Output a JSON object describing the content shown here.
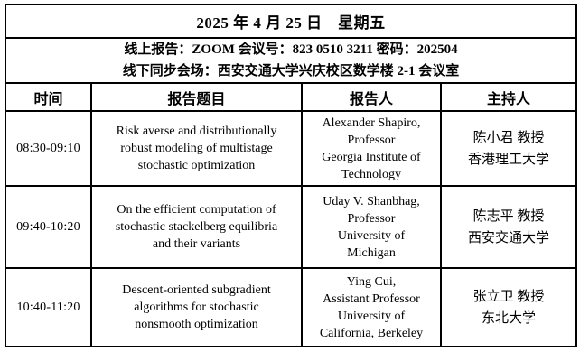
{
  "colors": {
    "background": "#ffffff",
    "border": "#000000",
    "text": "#000000"
  },
  "header": {
    "date": "2025 年 4 月 25 日　星期五",
    "online_info": "线上报告：ZOOM 会议号：823 0510 3211 密码：202504",
    "offline_info": "线下同步会场：西安交通大学兴庆校区数学楼 2-1 会议室"
  },
  "columns": {
    "time": "时间",
    "title": "报告题目",
    "speaker": "报告人",
    "chair": "主持人"
  },
  "rows": [
    {
      "time": "08:30-09:10",
      "title": "Risk averse and distributionally\nrobust modeling of multistage\nstochastic optimization",
      "speaker": "Alexander Shapiro,\nProfessor\nGeorgia Institute of\nTechnology",
      "chair": "陈小君 教授\n香港理工大学"
    },
    {
      "time": "09:40-10:20",
      "title": "On the efficient computation of\nstochastic stackelberg equilibria\nand their variants",
      "speaker": "Uday V. Shanbhag,\nProfessor\nUniversity of\nMichigan",
      "chair": "陈志平 教授\n西安交通大学"
    },
    {
      "time": "10:40-11:20",
      "title": "Descent-oriented subgradient\nalgorithms for stochastic\nnonsmooth optimization",
      "speaker": "Ying Cui,\nAssistant Professor\nUniversity of\nCalifornia, Berkeley",
      "chair": "张立卫 教授\n东北大学"
    }
  ]
}
